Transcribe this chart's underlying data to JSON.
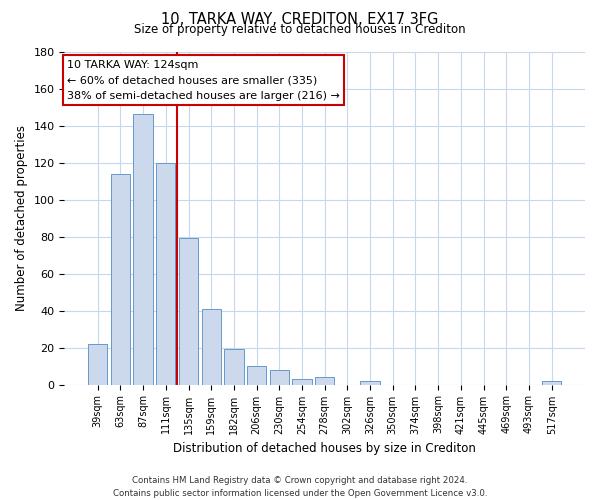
{
  "title": "10, TARKA WAY, CREDITON, EX17 3FG",
  "subtitle": "Size of property relative to detached houses in Crediton",
  "xlabel": "Distribution of detached houses by size in Crediton",
  "ylabel": "Number of detached properties",
  "bar_labels": [
    "39sqm",
    "63sqm",
    "87sqm",
    "111sqm",
    "135sqm",
    "159sqm",
    "182sqm",
    "206sqm",
    "230sqm",
    "254sqm",
    "278sqm",
    "302sqm",
    "326sqm",
    "350sqm",
    "374sqm",
    "398sqm",
    "421sqm",
    "445sqm",
    "469sqm",
    "493sqm",
    "517sqm"
  ],
  "bar_values": [
    22,
    114,
    146,
    120,
    79,
    41,
    19,
    10,
    8,
    3,
    4,
    0,
    2,
    0,
    0,
    0,
    0,
    0,
    0,
    0,
    2
  ],
  "bar_color": "#ccd9ed",
  "bar_edge_color": "#6699cc",
  "vline_x": 3.5,
  "vline_color": "#cc0000",
  "ylim": [
    0,
    180
  ],
  "yticks": [
    0,
    20,
    40,
    60,
    80,
    100,
    120,
    140,
    160,
    180
  ],
  "annotation_title": "10 TARKA WAY: 124sqm",
  "annotation_line1": "← 60% of detached houses are smaller (335)",
  "annotation_line2": "38% of semi-detached houses are larger (216) →",
  "annotation_box_color": "#ffffff",
  "annotation_box_edge": "#cc0000",
  "footer_line1": "Contains HM Land Registry data © Crown copyright and database right 2024.",
  "footer_line2": "Contains public sector information licensed under the Open Government Licence v3.0.",
  "background_color": "#ffffff",
  "grid_color": "#c8d8ec"
}
